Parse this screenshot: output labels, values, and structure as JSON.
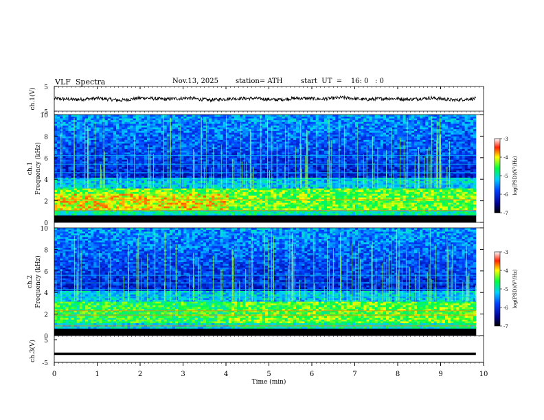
{
  "header": {
    "title": "VLF  Spectra",
    "date": "Nov.13, 2025",
    "station": "station= ATH",
    "start_ut": "start  UT  =    16: 0   : 0"
  },
  "chart_data": [
    {
      "type": "line",
      "panel": "ch1-waveform",
      "ylabel": "ch.1(V)",
      "ylim": [
        -5,
        5
      ],
      "yticks": [
        "5",
        "-5"
      ],
      "xlim": [
        0,
        10
      ],
      "series": [
        {
          "values": [
            0.1,
            -0.3,
            0.2,
            -0.6,
            0.4,
            -0.2,
            0.3,
            -0.5,
            0.1,
            0.2,
            -0.4,
            0.3,
            -0.1,
            0.5,
            -0.3,
            0.2,
            -0.2,
            0.4,
            -0.5,
            0.1
          ]
        }
      ]
    },
    {
      "type": "heatmap",
      "panel": "ch1-spectrogram",
      "ylabel": "Frequency (kHz)",
      "channel_label": "ch.1",
      "ylim": [
        0,
        10
      ],
      "yticks": [
        "0",
        "2",
        "4",
        "6",
        "8",
        "10"
      ],
      "xlim": [
        0,
        10
      ],
      "colorbar": {
        "label": "log(PSD)(V²/Hz)",
        "range": [
          -7,
          -3
        ],
        "ticks": [
          "-3",
          "-4",
          "-5",
          "-6",
          "-7"
        ]
      }
    },
    {
      "type": "heatmap",
      "panel": "ch2-spectrogram",
      "ylabel": "Frequency (kHz)",
      "channel_label": "ch.2",
      "ylim": [
        0,
        10
      ],
      "yticks": [
        "0",
        "2",
        "4",
        "6",
        "8",
        "10"
      ],
      "xlim": [
        0,
        10
      ],
      "colorbar": {
        "label": "log(PSD)(V²/Hz)",
        "range": [
          -7,
          -3
        ],
        "ticks": [
          "-3",
          "-4",
          "-5",
          "-6",
          "-7"
        ]
      }
    },
    {
      "type": "line",
      "panel": "ch3-waveform",
      "ylabel": "ch.3(V)",
      "ylim": [
        -5,
        5
      ],
      "yticks": [
        "5",
        "-5"
      ],
      "xlim": [
        0,
        10
      ],
      "series": [
        {
          "values": [
            -1.2,
            -1.2,
            -1.2,
            -1.2,
            -1.2,
            -1.2,
            -1.2,
            -1.2,
            -1.2,
            -1.2,
            -1.2,
            -1.2,
            -1.2,
            -1.2,
            -1.2,
            -1.2,
            -1.2,
            -1.2,
            -1.2,
            -1.2
          ]
        }
      ]
    }
  ],
  "x_axis": {
    "label": "Time  (min)",
    "ticks": [
      "0",
      "1",
      "2",
      "3",
      "4",
      "5",
      "6",
      "7",
      "8",
      "9",
      "10"
    ]
  }
}
